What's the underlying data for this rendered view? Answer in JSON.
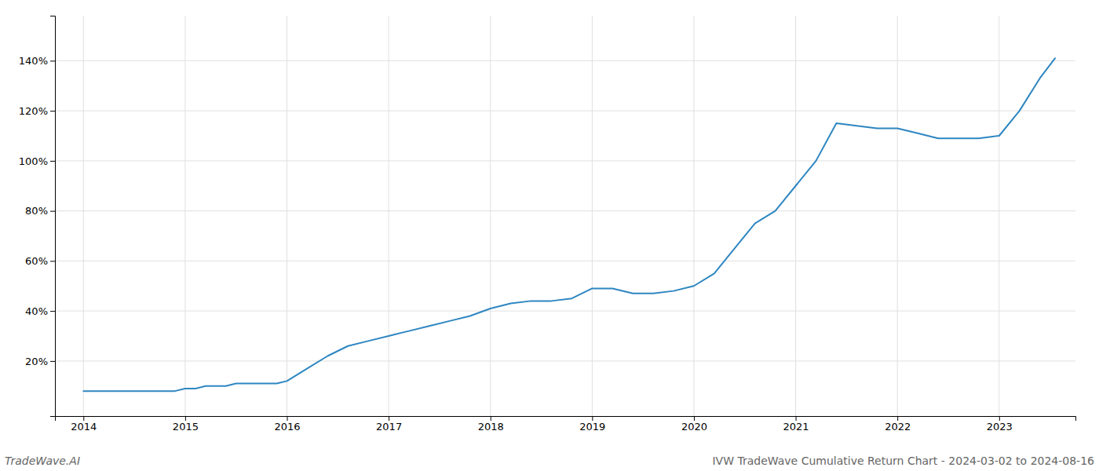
{
  "chart_data": {
    "type": "line",
    "title": "IVW TradeWave Cumulative Return Chart - 2024-03-02 to 2024-08-16",
    "annotations": [
      "TradeWave.AI"
    ],
    "x": [
      2014.0,
      2014.1,
      2014.2,
      2014.3,
      2014.4,
      2014.5,
      2014.6,
      2014.7,
      2014.8,
      2014.9,
      2015.0,
      2015.1,
      2015.2,
      2015.3,
      2015.4,
      2015.5,
      2015.6,
      2015.7,
      2015.8,
      2015.9,
      2016.0,
      2016.2,
      2016.4,
      2016.6,
      2016.8,
      2017.0,
      2017.2,
      2017.4,
      2017.6,
      2017.8,
      2018.0,
      2018.2,
      2018.4,
      2018.6,
      2018.8,
      2019.0,
      2019.2,
      2019.4,
      2019.6,
      2019.8,
      2020.0,
      2020.2,
      2020.4,
      2020.6,
      2020.8,
      2021.0,
      2021.2,
      2021.4,
      2021.6,
      2021.8,
      2022.0,
      2022.2,
      2022.4,
      2022.6,
      2022.8,
      2023.0,
      2023.2,
      2023.4,
      2023.55
    ],
    "values": [
      8,
      8,
      8,
      8,
      8,
      8,
      8,
      8,
      8,
      8,
      9,
      9,
      10,
      10,
      10,
      11,
      11,
      11,
      11,
      11,
      12,
      17,
      22,
      26,
      28,
      30,
      32,
      34,
      36,
      38,
      41,
      43,
      44,
      44,
      45,
      49,
      49,
      47,
      47,
      48,
      50,
      55,
      65,
      75,
      80,
      90,
      100,
      115,
      114,
      113,
      113,
      111,
      109,
      109,
      109,
      110,
      120,
      133,
      141
    ],
    "color": "#2e86c1",
    "xlim": [
      2013.72,
      2023.75
    ],
    "xticks": [
      2014,
      2015,
      2016,
      2017,
      2018,
      2019,
      2020,
      2021,
      2022,
      2023
    ],
    "ylim": [
      -2,
      158
    ],
    "yticks": [
      {
        "value": 20,
        "label": "20%"
      },
      {
        "value": 40,
        "label": "40%"
      },
      {
        "value": 60,
        "label": "60%"
      },
      {
        "value": 80,
        "label": "80%"
      },
      {
        "value": 100,
        "label": "100%"
      },
      {
        "value": 120,
        "label": "120%"
      },
      {
        "value": 140,
        "label": "140%"
      }
    ],
    "grid": true
  }
}
